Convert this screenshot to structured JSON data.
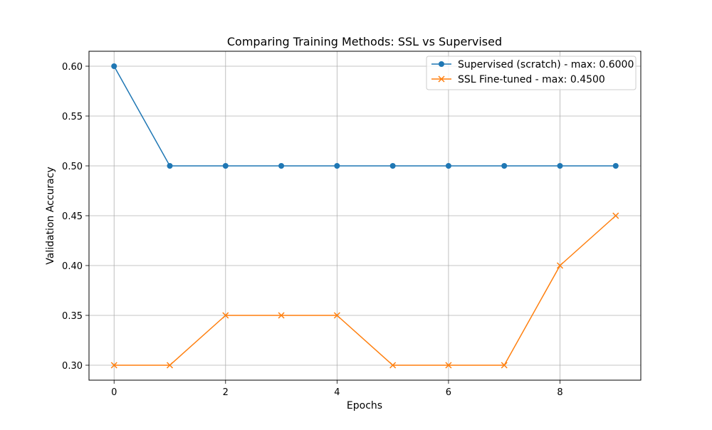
{
  "chart_data": {
    "type": "line",
    "title": "Comparing Training Methods: SSL vs Supervised",
    "xlabel": "Epochs",
    "ylabel": "Validation Accuracy",
    "xlim": [
      -0.45,
      9.45
    ],
    "ylim": [
      0.285,
      0.615
    ],
    "x_ticks": [
      0,
      2,
      4,
      6,
      8
    ],
    "y_ticks": [
      0.3,
      0.35,
      0.4,
      0.45,
      0.5,
      0.55,
      0.6
    ],
    "x_tick_labels": [
      "0",
      "2",
      "4",
      "6",
      "8"
    ],
    "y_tick_labels": [
      "0.30",
      "0.35",
      "0.40",
      "0.45",
      "0.50",
      "0.55",
      "0.60"
    ],
    "grid": true,
    "legend_position": "top-right",
    "x": [
      0,
      1,
      2,
      3,
      4,
      5,
      6,
      7,
      8,
      9
    ],
    "series": [
      {
        "name": "Supervised (scratch) - max: 0.6000",
        "color": "#1f77b4",
        "marker": "circle",
        "values": [
          0.6,
          0.5,
          0.5,
          0.5,
          0.5,
          0.5,
          0.5,
          0.5,
          0.5,
          0.5
        ]
      },
      {
        "name": "SSL Fine-tuned - max: 0.4500",
        "color": "#ff7f0e",
        "marker": "x",
        "values": [
          0.3,
          0.3,
          0.35,
          0.35,
          0.35,
          0.3,
          0.3,
          0.3,
          0.4,
          0.45
        ]
      }
    ]
  }
}
